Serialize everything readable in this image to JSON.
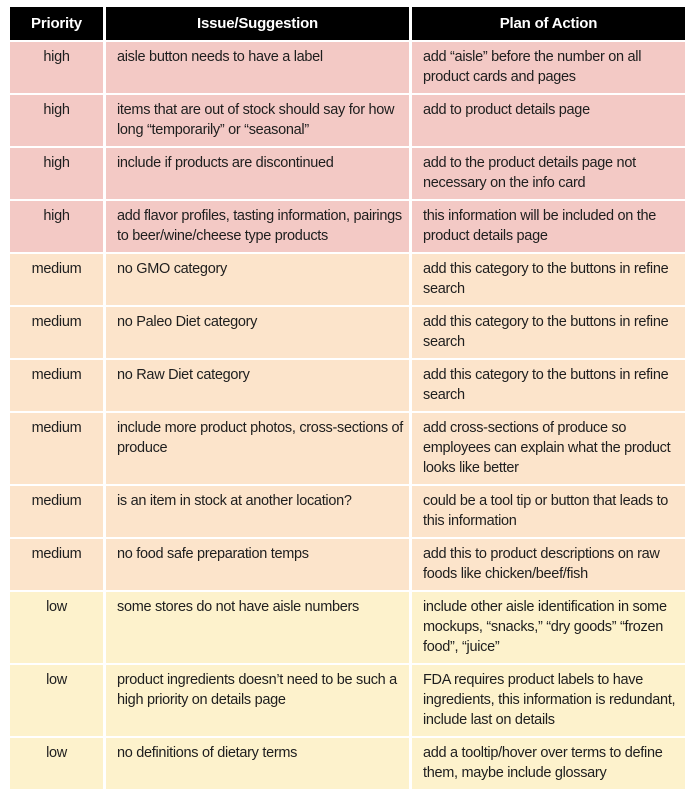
{
  "table": {
    "headers": [
      "Priority",
      "Issue/Suggestion",
      "Plan of Action"
    ],
    "header_bg": "#000000",
    "header_text_color": "#ffffff",
    "priority_colors": {
      "high": "#f3c9c5",
      "medium": "#fce4cb",
      "low": "#fdf2cc"
    },
    "rows": [
      {
        "priority": "high",
        "issue": "aisle button needs to have a label",
        "action": "add “aisle” before the number on all product cards and pages"
      },
      {
        "priority": "high",
        "issue": "items that are out of stock should say for how long “temporarily” or “seasonal”",
        "action": "add to product details page"
      },
      {
        "priority": "high",
        "issue": "include if products are discontinued",
        "action": "add to the product details page not necessary on the info card"
      },
      {
        "priority": "high",
        "issue": "add flavor profiles, tasting information, pairings to beer/wine/cheese type products",
        "action": "this information will be included on the product details page"
      },
      {
        "priority": "medium",
        "issue": "no GMO category",
        "action": "add this category to the buttons in refine search"
      },
      {
        "priority": "medium",
        "issue": "no Paleo Diet category",
        "action": "add this category to the buttons in refine search"
      },
      {
        "priority": "medium",
        "issue": "no Raw Diet category",
        "action": "add this category to the buttons in refine search"
      },
      {
        "priority": "medium",
        "issue": "include more product photos, cross-sections of produce",
        "action": "add cross-sections of produce so employees can explain what the product looks like better"
      },
      {
        "priority": "medium",
        "issue": "is an item in stock at another location?",
        "action": "could be a tool tip or button that leads to this information"
      },
      {
        "priority": "medium",
        "issue": "no food safe preparation temps",
        "action": "add this to product descriptions on raw foods like chicken/beef/fish"
      },
      {
        "priority": "low",
        "issue": "some stores do not have aisle numbers",
        "action": "include other aisle identification in some mockups, “snacks,” “dry goods” “frozen food”, “juice”"
      },
      {
        "priority": "low",
        "issue": "product ingredients doesn’t need to be such a high priority on details page",
        "action": "FDA requires product labels to have ingredients, this information is redundant, include last on details"
      },
      {
        "priority": "low",
        "issue": "no definitions of dietary terms",
        "action": "add a tooltip/hover over terms to define them, maybe include glossary"
      }
    ]
  }
}
